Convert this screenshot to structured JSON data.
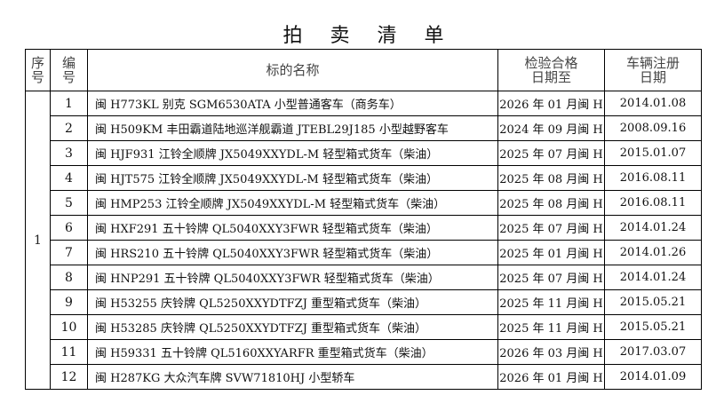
{
  "title": "拍 卖 清 单",
  "headers": {
    "seq": "序号",
    "no": "编号",
    "name": "标的名称",
    "inspection": "检验合格日期至",
    "registration": "车辆注册日期"
  },
  "seq_value": "1",
  "rows": [
    {
      "no": "1",
      "name": "闽 H773KL 别克 SGM6530ATA 小型普通客车（商务车）",
      "inspection": "2026 年 01 月闽 H",
      "registration": "2014.01.08"
    },
    {
      "no": "2",
      "name": "闽 H509KM 丰田霸道陆地巡洋舰霸道 JTEBL29J185 小型越野客车",
      "inspection": "2024 年 09 月闽 H",
      "registration": "2008.09.16"
    },
    {
      "no": "3",
      "name": "闽 HJF931 江铃全顺牌 JX5049XXYDL-M 轻型箱式货车（柴油）",
      "inspection": "2025 年 07 月闽 H",
      "registration": "2015.01.07"
    },
    {
      "no": "4",
      "name": "闽 HJT575 江铃全顺牌 JX5049XXYDL-M 轻型箱式货车（柴油）",
      "inspection": "2025 年 08 月闽 H",
      "registration": "2016.08.11"
    },
    {
      "no": "5",
      "name": "闽 HMP253 江铃全顺牌 JX5049XXYDL-M 轻型箱式货车（柴油）",
      "inspection": "2025 年 08 月闽 H",
      "registration": "2016.08.11"
    },
    {
      "no": "6",
      "name": "闽 HXF291 五十铃牌 QL5040XXY3FWR 轻型箱式货车（柴油）",
      "inspection": "2025 年 07 月闽 H",
      "registration": "2014.01.24"
    },
    {
      "no": "7",
      "name": "闽 HRS210 五十铃牌 QL5040XXY3FWR 轻型箱式货车（柴油）",
      "inspection": "2025 年 01 月闽 H",
      "registration": "2014.01.26"
    },
    {
      "no": "8",
      "name": "闽 HNP291 五十铃牌 QL5040XXY3FWR 轻型箱式货车（柴油）",
      "inspection": "2025 年 07 月闽 H",
      "registration": "2014.01.24"
    },
    {
      "no": "9",
      "name": "闽 H53255 庆铃牌 QL5250XXYDTFZJ 重型箱式货车（柴油）",
      "inspection": "2025 年 11 月闽 H",
      "registration": "2015.05.21"
    },
    {
      "no": "10",
      "name": "闽 H53285 庆铃牌 QL5250XXYDTFZJ 重型箱式货车（柴油）",
      "inspection": "2025 年 11 月闽 H",
      "registration": "2015.05.21"
    },
    {
      "no": "11",
      "name": "闽 H59331 五十铃牌 QL5160XXYARFR 重型箱式货车（柴油）",
      "inspection": "2026 年 03 月闽 H",
      "registration": "2017.03.07"
    },
    {
      "no": "12",
      "name": "闽 H287KG 大众汽车牌 SVW71810HJ 小型轿车",
      "inspection": "2026 年 01 月闽 H",
      "registration": "2014.01.09"
    }
  ]
}
